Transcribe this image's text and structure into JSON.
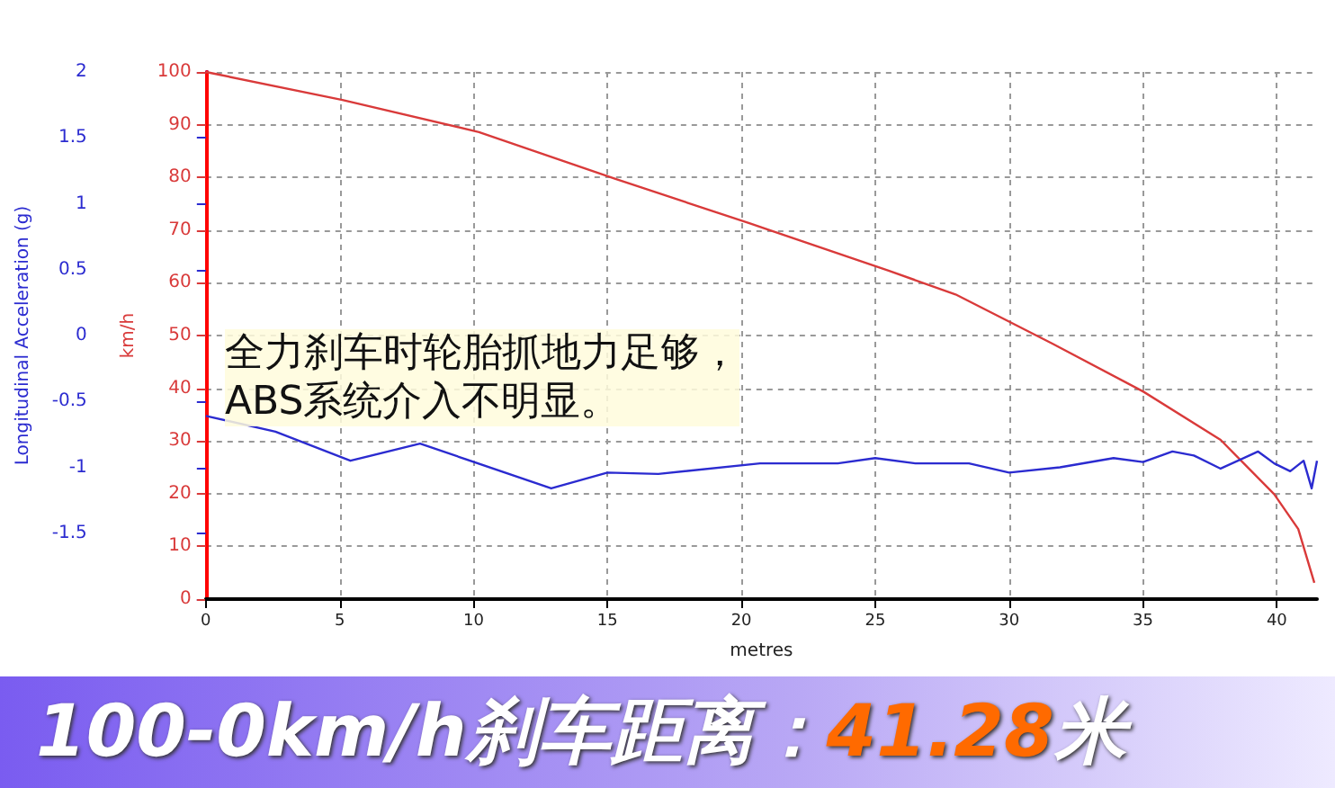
{
  "chart_data": {
    "type": "line",
    "title": "100-0km/h刹车距离：41.28米",
    "xlabel": "metres",
    "ylabel": "Longitudinal Acceleration (g)",
    "y2label": "km/h",
    "annotations": [
      "全力刹车时轮胎抓地力足够，\nABS系统介入不明显。"
    ],
    "series": [
      {
        "color": "#2b2bd0",
        "x": [
          0,
          2.6,
          5.4,
          8.0,
          12.9,
          15.0,
          16.9,
          20.7,
          23.6,
          25.0,
          26.5,
          28.5,
          30.0,
          31.9,
          33.9,
          35.0,
          36.1,
          36.9,
          37.9,
          39.3,
          39.9,
          40.5,
          41.0,
          41.3,
          41.5
        ],
        "values": [
          -0.61,
          -0.73,
          -0.95,
          -0.82,
          -1.16,
          -1.04,
          -1.05,
          -0.97,
          -0.97,
          -0.93,
          -0.97,
          -0.97,
          -1.04,
          -1.0,
          -0.93,
          -0.96,
          -0.88,
          -0.91,
          -1.01,
          -0.88,
          -0.97,
          -1.03,
          -0.95,
          -1.16,
          -0.95
        ]
      },
      {
        "color": "#d93a3a",
        "axis": "y2",
        "x": [
          0,
          5.1,
          10.2,
          15.3,
          20.3,
          25.5,
          28.0,
          31.6,
          35.0,
          37.9,
          39.9,
          40.8,
          41.4
        ],
        "values": [
          100,
          94.7,
          88.6,
          79.7,
          71.3,
          62.3,
          57.8,
          48.5,
          39.4,
          30.2,
          19.9,
          13.3,
          3.1
        ]
      }
    ],
    "xlim": [
      0,
      41.5
    ],
    "xticks": [
      0,
      5,
      10,
      15,
      20,
      25,
      30,
      35,
      40
    ],
    "ylim": [
      -2,
      2
    ],
    "yticks": [
      {
        "value": -2,
        "label": null
      },
      -1.5,
      -1,
      -0.5,
      0,
      0.5,
      1,
      1.5,
      2
    ],
    "y2lim": [
      0,
      100
    ],
    "y2ticks": [
      0,
      10,
      20,
      30,
      40,
      50,
      60,
      70,
      80,
      90,
      100
    ],
    "grid": true,
    "marker": "none",
    "line_style": "solid"
  }
}
